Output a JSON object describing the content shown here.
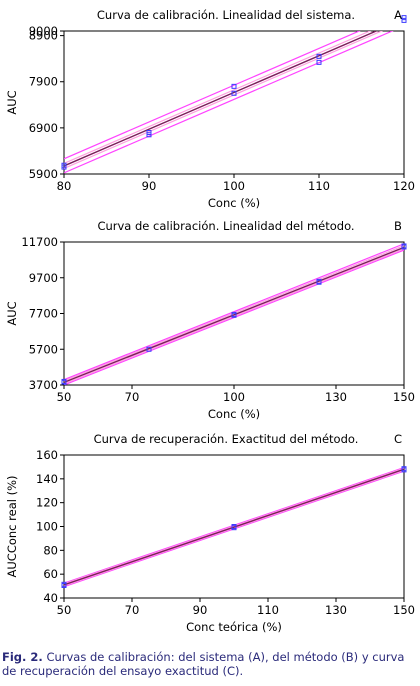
{
  "caption": {
    "label": "Fig. 2.",
    "text": "Curvas de calibración: del sistema (A), del método (B) y curva de recuperación del ensayo exactitud (C)."
  },
  "colors": {
    "data_points": "#3a3aff",
    "fit_line": "#7b1e5a",
    "band_outer": "#ff44ff",
    "band_inner": "#ff9ee0"
  },
  "chart_data": [
    {
      "type": "scatter",
      "panel_letter": "A",
      "title": "Curva de calibración. Linealidad del sistema.",
      "xlabel": "Conc (%)",
      "ylabel": "AUC",
      "xlim": [
        80,
        120
      ],
      "ylim": [
        5900,
        9000
      ],
      "xticks": [
        80,
        90,
        100,
        110,
        120
      ],
      "yticks": [
        5900,
        6900,
        7900,
        8900,
        9000
      ],
      "fit": {
        "x": [
          80,
          120
        ],
        "y": [
          6075,
          9260
        ]
      },
      "bands": [
        {
          "kind": "outer",
          "upper": [
            6230,
            9420
          ],
          "lower": [
            5925,
            9110
          ]
        },
        {
          "kind": "inner",
          "upper": [
            6130,
            9320
          ],
          "lower": [
            6020,
            9210
          ]
        }
      ],
      "series": [
        {
          "x": [
            80,
            80,
            90,
            90,
            100,
            100,
            110,
            110,
            120,
            120
          ],
          "y": [
            6050,
            6090,
            6750,
            6800,
            7650,
            7800,
            8320,
            8450,
            9230,
            9290
          ]
        }
      ]
    },
    {
      "type": "scatter",
      "panel_letter": "B",
      "title": "Curva de calibración. Linealidad del método.",
      "xlabel": "Conc (%)",
      "ylabel": "AUC",
      "xlim": [
        50,
        150
      ],
      "ylim": [
        3700,
        11700
      ],
      "xticks": [
        50,
        70,
        100,
        130,
        150
      ],
      "yticks": [
        3700,
        5700,
        7700,
        9700,
        11700
      ],
      "fit": {
        "x": [
          50,
          150
        ],
        "y": [
          3850,
          11400
        ]
      },
      "bands": [
        {
          "kind": "outer",
          "upper": [
            4000,
            11600
          ],
          "lower": [
            3700,
            11250
          ]
        },
        {
          "kind": "inner",
          "upper": [
            3930,
            11500
          ],
          "lower": [
            3770,
            11320
          ]
        }
      ],
      "series": [
        {
          "x": [
            50,
            50,
            75,
            100,
            100,
            125,
            125,
            150,
            150
          ],
          "y": [
            3850,
            3900,
            5700,
            7600,
            7650,
            9450,
            9500,
            11420,
            11480
          ]
        }
      ]
    },
    {
      "type": "scatter",
      "panel_letter": "C",
      "title": "Curva de recuperación. Exactitud del método.",
      "xlabel": "Conc teórica (%)",
      "ylabel": "AUCConc real (%)",
      "xlim": [
        50,
        150
      ],
      "ylim": [
        40,
        160
      ],
      "xticks": [
        50,
        70,
        90,
        110,
        130,
        150
      ],
      "yticks": [
        40,
        60,
        80,
        100,
        120,
        140,
        160
      ],
      "fit": {
        "x": [
          50,
          150
        ],
        "y": [
          51,
          148
        ]
      },
      "bands": [
        {
          "kind": "outer",
          "upper": [
            52.5,
            149.5
          ],
          "lower": [
            49.5,
            146.5
          ]
        },
        {
          "kind": "inner",
          "upper": [
            51.8,
            148.8
          ],
          "lower": [
            50.2,
            147.2
          ]
        }
      ],
      "series": [
        {
          "x": [
            50,
            50,
            100,
            100,
            150,
            150
          ],
          "y": [
            50.5,
            51.5,
            99,
            100,
            147.5,
            148.5
          ]
        }
      ]
    }
  ]
}
